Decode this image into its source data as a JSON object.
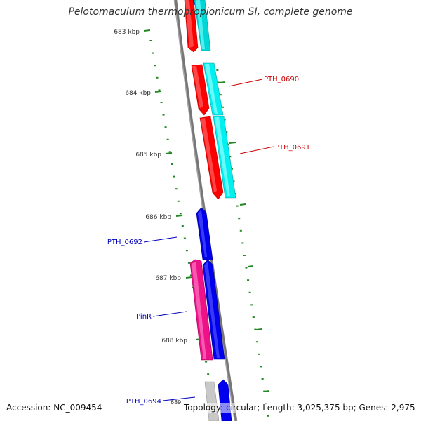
{
  "title": "Pelotomaculum thermopropionicum SI, complete genome",
  "ruler_labels": [
    "683 kbp",
    "684 kbp",
    "685 kbp",
    "686 kbp",
    "687 kbp",
    "688 kbp",
    "689"
  ],
  "gene_labels": {
    "pth0690": "PTH_0690",
    "pth0691": "PTH_0691",
    "pth0692": "PTH_0692",
    "pinr": "PinR",
    "pth0694": "PTH_0694"
  },
  "footer": {
    "accession": "Accession: NC_009454",
    "topology": "Topology: circular; Length: 3,025,375 bp; Genes: 2,975"
  },
  "colors": {
    "red": "#ff0000",
    "cyan": "#00e5e5",
    "blue": "#0000ee",
    "pink": "#ee1188",
    "grey": "#c8c8c8",
    "backbone": "#808080",
    "tick": "#228822",
    "label_red": "#cc0000",
    "label_blue": "#0000bb"
  }
}
